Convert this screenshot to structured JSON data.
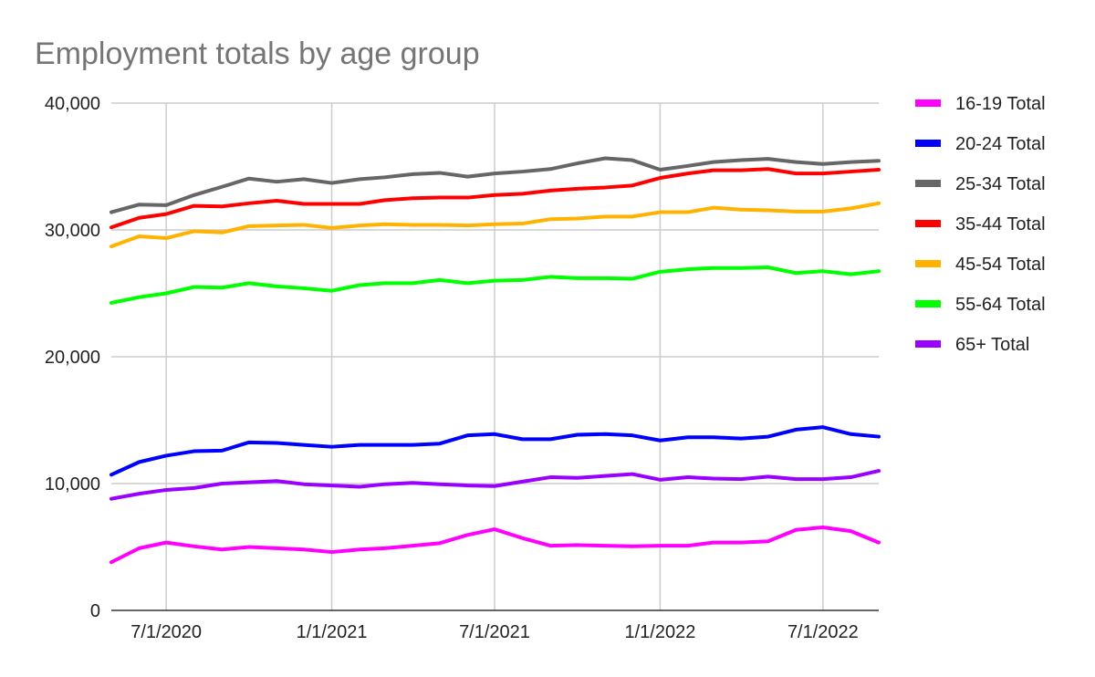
{
  "chart_data": {
    "type": "line",
    "title": "Employment totals by age group",
    "xlabel": "",
    "ylabel": "",
    "ylim": [
      0,
      40000
    ],
    "yticks": [
      0,
      10000,
      20000,
      30000,
      40000
    ],
    "ytick_labels": [
      "0",
      "10,000",
      "20,000",
      "30,000",
      "40,000"
    ],
    "x": [
      "2020-05-01",
      "2020-06-01",
      "2020-07-01",
      "2020-08-01",
      "2020-09-01",
      "2020-10-01",
      "2020-11-01",
      "2020-12-01",
      "2021-01-01",
      "2021-02-01",
      "2021-03-01",
      "2021-04-01",
      "2021-05-01",
      "2021-06-01",
      "2021-07-01",
      "2021-08-01",
      "2021-09-01",
      "2021-10-01",
      "2021-11-01",
      "2021-12-01",
      "2022-01-01",
      "2022-02-01",
      "2022-03-01",
      "2022-04-01",
      "2022-05-01",
      "2022-06-01",
      "2022-07-01",
      "2022-08-01",
      "2022-09-01"
    ],
    "xticks": [
      "2020-07-01",
      "2021-01-01",
      "2021-07-01",
      "2022-01-01",
      "2022-07-01"
    ],
    "xtick_labels": [
      "7/1/2020",
      "1/1/2021",
      "7/1/2021",
      "1/1/2022",
      "7/1/2022"
    ],
    "xlim": [
      "2020-05-01",
      "2022-09-01"
    ],
    "grid": "vertical and horizontal",
    "legend_position": "right",
    "series": [
      {
        "name": "16-19 Total",
        "color": "#ff00ff",
        "values": [
          3800,
          4900,
          5350,
          5050,
          4800,
          5000,
          4900,
          4800,
          4600,
          4800,
          4900,
          5100,
          5300,
          5950,
          6400,
          5700,
          5100,
          5150,
          5100,
          5050,
          5100,
          5100,
          5350,
          5350,
          5450,
          6350,
          6550,
          6250,
          5350
        ]
      },
      {
        "name": "20-24 Total",
        "color": "#0000ff",
        "values": [
          10700,
          11700,
          12200,
          12550,
          12600,
          13250,
          13200,
          13050,
          12900,
          13050,
          13050,
          13050,
          13150,
          13800,
          13900,
          13500,
          13500,
          13850,
          13900,
          13800,
          13400,
          13650,
          13650,
          13550,
          13700,
          14250,
          14450,
          13900,
          13700
        ]
      },
      {
        "name": "25-34 Total",
        "color": "#666666",
        "values": [
          31400,
          32000,
          31950,
          32750,
          33400,
          34050,
          33800,
          34000,
          33700,
          34000,
          34150,
          34400,
          34500,
          34200,
          34450,
          34600,
          34800,
          35250,
          35650,
          35500,
          34750,
          35050,
          35350,
          35500,
          35600,
          35350,
          35200,
          35350,
          35450
        ]
      },
      {
        "name": "35-44 Total",
        "color": "#ff0000",
        "values": [
          30200,
          30950,
          31250,
          31900,
          31850,
          32100,
          32300,
          32050,
          32050,
          32050,
          32350,
          32500,
          32550,
          32550,
          32750,
          32850,
          33100,
          33250,
          33350,
          33500,
          34100,
          34450,
          34700,
          34700,
          34800,
          34450,
          34450,
          34600,
          34750
        ]
      },
      {
        "name": "45-54 Total",
        "color": "#ffb300",
        "values": [
          28700,
          29500,
          29350,
          29900,
          29800,
          30300,
          30350,
          30400,
          30150,
          30350,
          30450,
          30400,
          30400,
          30350,
          30450,
          30500,
          30850,
          30900,
          31050,
          31050,
          31400,
          31400,
          31750,
          31600,
          31550,
          31450,
          31450,
          31700,
          32100
        ]
      },
      {
        "name": "55-64 Total",
        "color": "#00ff00",
        "values": [
          24250,
          24700,
          25000,
          25500,
          25450,
          25800,
          25550,
          25400,
          25200,
          25650,
          25800,
          25800,
          26050,
          25800,
          26000,
          26050,
          26300,
          26200,
          26200,
          26150,
          26700,
          26900,
          27000,
          27000,
          27050,
          26600,
          26750,
          26500,
          26750
        ]
      },
      {
        "name": "65+ Total",
        "color": "#9900ff",
        "values": [
          8800,
          9200,
          9500,
          9650,
          10000,
          10100,
          10200,
          9950,
          9850,
          9750,
          9950,
          10050,
          9950,
          9850,
          9800,
          10150,
          10500,
          10450,
          10600,
          10750,
          10300,
          10500,
          10400,
          10350,
          10550,
          10350,
          10350,
          10500,
          11000
        ]
      }
    ]
  }
}
